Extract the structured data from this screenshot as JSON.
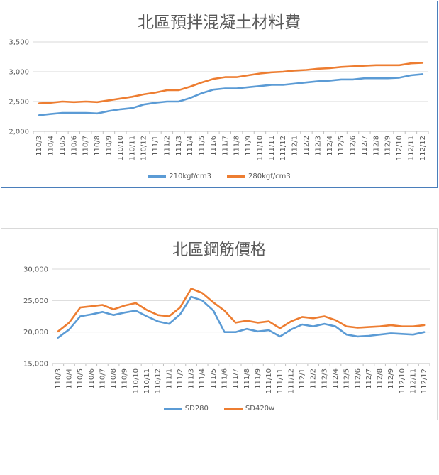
{
  "colors": {
    "series_a": "#5b9bd5",
    "series_b": "#ed7d31",
    "grid": "#d9d9d9",
    "axis": "#bfbfbf"
  },
  "chart_data": [
    {
      "type": "line",
      "title": "北區預拌混凝土材料費",
      "categories": [
        "110/3",
        "110/4",
        "110/5",
        "110/6",
        "110/7",
        "110/8",
        "110/9",
        "110/10",
        "110/11",
        "110/12",
        "111/1",
        "111/2",
        "111/3",
        "111/4",
        "111/5",
        "111/6",
        "111/7",
        "111/8",
        "111/9",
        "111/10",
        "111/11",
        "111/12",
        "112/1",
        "112/2",
        "112/3",
        "112/4",
        "112/5",
        "112/6",
        "112/7",
        "112/8",
        "112/9",
        "112/10",
        "112/11",
        "112/12"
      ],
      "category_labels": [
        "110/3",
        "110/4",
        "110/5",
        "110/6",
        "110/7",
        "110/8",
        "110/9",
        "110/10",
        "110/11",
        "110/12",
        "111/1",
        "111/2",
        "111/3",
        "111/4",
        "111/5",
        "111/6",
        "111/7",
        "111/8",
        "111/9",
        "111/10",
        "111/11",
        "111/12",
        "112/1",
        "112/2",
        "112/3",
        "112/4",
        "112/5",
        "112/6",
        "112/7",
        "112/8",
        "112/9",
        "112/10",
        "112/11",
        "112/12"
      ],
      "ylim": [
        2000,
        3500
      ],
      "yticks": [
        2000,
        2500,
        3000,
        3500
      ],
      "ytick_labels": [
        "2,000",
        "2,500",
        "3,000",
        "3,500"
      ],
      "grid": true,
      "legend": "bottom",
      "series": [
        {
          "name": "210kgf/cm3",
          "values": [
            2270,
            2290,
            2310,
            2310,
            2310,
            2300,
            2340,
            2370,
            2390,
            2450,
            2480,
            2500,
            2500,
            2560,
            2640,
            2700,
            2720,
            2720,
            2740,
            2760,
            2780,
            2780,
            2800,
            2820,
            2840,
            2850,
            2870,
            2870,
            2890,
            2890,
            2890,
            2900,
            2940,
            2960
          ]
        },
        {
          "name": "280kgf/cm3",
          "values": [
            2470,
            2480,
            2500,
            2490,
            2500,
            2490,
            2520,
            2550,
            2580,
            2620,
            2650,
            2690,
            2690,
            2750,
            2820,
            2880,
            2910,
            2910,
            2940,
            2970,
            2990,
            3000,
            3020,
            3030,
            3050,
            3060,
            3080,
            3090,
            3100,
            3110,
            3110,
            3110,
            3140,
            3150
          ]
        }
      ]
    },
    {
      "type": "line",
      "title": "北區鋼筋價格",
      "categories": [
        "110/3",
        "110/4",
        "110/5",
        "110/6",
        "110/7",
        "110/8",
        "110/9",
        "110/10",
        "110/11",
        "110/12",
        "111/1",
        "111/2",
        "111/3",
        "111/4",
        "111/5",
        "111/6",
        "111/7",
        "111/8",
        "111/9",
        "111/10",
        "111/11",
        "111/12",
        "112/1",
        "112/2",
        "112/3",
        "112/4",
        "112/5",
        "112/6",
        "112/7",
        "112/8",
        "112/9",
        "112/10",
        "112/11",
        "112/12"
      ],
      "category_labels": [
        "110/3",
        "110/4",
        "110/5",
        "110/6",
        "110/7",
        "110/8",
        "110/9",
        "110/10",
        "110/11",
        "110/12",
        "111/1",
        "111/2",
        "111/3",
        "111/4",
        "111/5",
        "111/6",
        "111/7",
        "111/8",
        "111/9",
        "111/10",
        "111/11",
        "111/12",
        "112/1",
        "112/2",
        "112/3",
        "112/4",
        "112/5",
        "112/6",
        "112/7",
        "112/8",
        "112/9",
        "112/10",
        "112/11",
        "112/12"
      ],
      "ylim": [
        15000,
        30000
      ],
      "yticks": [
        15000,
        20000,
        25000,
        30000
      ],
      "ytick_labels": [
        "15,000",
        "20,000",
        "25,000",
        "30,000"
      ],
      "grid": true,
      "legend": "bottom",
      "series": [
        {
          "name": "SD280",
          "values": [
            19100,
            20400,
            22500,
            22800,
            23200,
            22700,
            23100,
            23400,
            22500,
            21700,
            21300,
            22800,
            25600,
            25000,
            23400,
            20000,
            20000,
            20500,
            20100,
            20300,
            19300,
            20400,
            21200,
            20900,
            21300,
            20900,
            19600,
            19300,
            19400,
            19600,
            19800,
            19700,
            19600,
            20000
          ]
        },
        {
          "name": "SD420w",
          "values": [
            20100,
            21500,
            23900,
            24100,
            24300,
            23600,
            24200,
            24600,
            23500,
            22700,
            22500,
            23900,
            26900,
            26200,
            24700,
            23400,
            21500,
            21800,
            21500,
            21700,
            20600,
            21700,
            22400,
            22200,
            22500,
            21900,
            20900,
            20700,
            20800,
            20900,
            21100,
            20900,
            20900,
            21100
          ]
        }
      ]
    }
  ]
}
